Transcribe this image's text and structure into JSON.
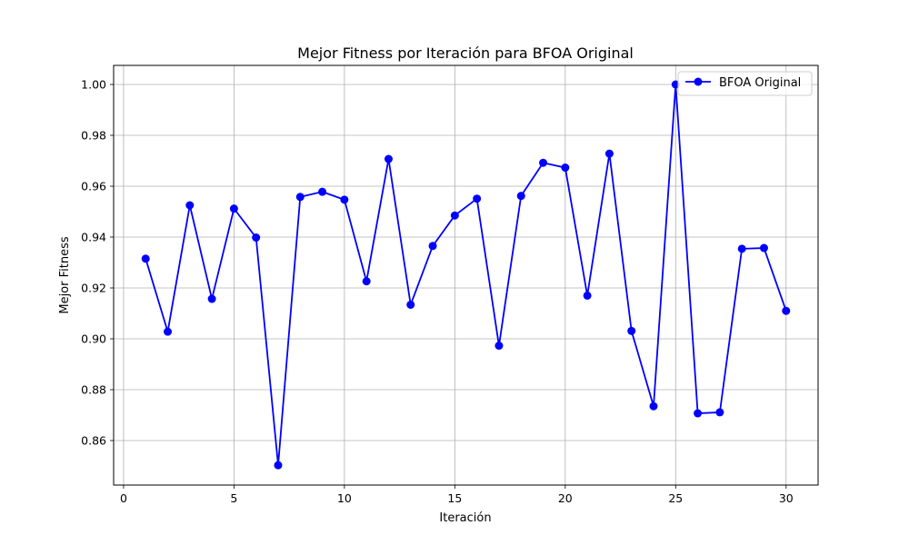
{
  "chart_data": {
    "type": "line",
    "title": "Mejor Fitness por Iteración para BFOA Original",
    "xlabel": "Iteración",
    "ylabel": "Mejor Fitness",
    "xlim": [
      -0.45,
      31.45
    ],
    "ylim": [
      0.8425,
      1.0075
    ],
    "xticks": [
      0,
      5,
      10,
      15,
      20,
      25,
      30
    ],
    "yticks": [
      0.86,
      0.88,
      0.9,
      0.92,
      0.94,
      0.96,
      0.98,
      1.0
    ],
    "xtick_labels": [
      "0",
      "5",
      "10",
      "15",
      "20",
      "25",
      "30"
    ],
    "ytick_labels": [
      "0.86",
      "0.88",
      "0.90",
      "0.92",
      "0.94",
      "0.96",
      "0.98",
      "1.00"
    ],
    "grid": true,
    "legend_position": "top-right",
    "series": [
      {
        "name": "BFOA Original",
        "color": "#0000ff",
        "marker": "circle",
        "x": [
          1,
          2,
          3,
          4,
          5,
          6,
          7,
          8,
          9,
          10,
          11,
          12,
          13,
          14,
          15,
          16,
          17,
          18,
          19,
          20,
          21,
          22,
          23,
          24,
          25,
          26,
          27,
          28,
          29,
          30
        ],
        "y": [
          0.9315,
          0.9028,
          0.9525,
          0.9157,
          0.9512,
          0.9398,
          0.8503,
          0.9558,
          0.9578,
          0.9547,
          0.9226,
          0.9707,
          0.9134,
          0.9365,
          0.9485,
          0.9551,
          0.8973,
          0.9562,
          0.9692,
          0.9673,
          0.917,
          0.9728,
          0.9031,
          0.8735,
          1.0,
          0.8707,
          0.8711,
          0.9354,
          0.9357,
          0.911
        ]
      }
    ]
  }
}
